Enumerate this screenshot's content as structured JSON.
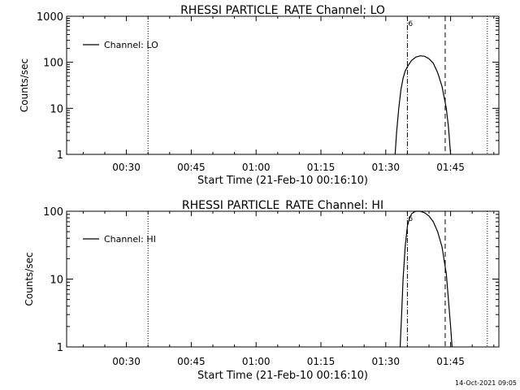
{
  "chart_data": [
    {
      "type": "line",
      "title": "RHESSI PARTICLE_RATE Channel: LO",
      "xlabel": "Start Time (21-Feb-10 00:16:10)",
      "ylabel": "Counts/sec",
      "y_scale": "log",
      "ylim": [
        1,
        1000
      ],
      "y_ticks": [
        "1",
        "10",
        "100",
        "1000"
      ],
      "x_ticks": [
        "00:30",
        "00:45",
        "01:00",
        "01:15",
        "01:30",
        "01:45"
      ],
      "xlim": [
        "00:16:10",
        "01:56:10"
      ],
      "legend": "Channel: LO",
      "legend_position": "top-left",
      "marker_label": "6",
      "vlines": [
        {
          "time": "00:35:00",
          "style": "dotted"
        },
        {
          "time": "01:35:00",
          "style": "dash-dot"
        },
        {
          "time": "01:43:45",
          "style": "dashed"
        },
        {
          "time": "01:53:30",
          "style": "dotted"
        }
      ],
      "series": [
        {
          "x": [
            "01:32:10",
            "01:32:30",
            "01:33:00",
            "01:33:30",
            "01:34:00",
            "01:34:30",
            "01:35:00",
            "01:35:30",
            "01:36:00",
            "01:37:00",
            "01:38:00",
            "01:39:00",
            "01:40:00",
            "01:41:00",
            "01:42:00",
            "01:43:00",
            "01:44:00",
            "01:44:30",
            "01:45:00"
          ],
          "y": [
            1,
            3,
            10,
            25,
            45,
            65,
            80,
            95,
            110,
            130,
            138,
            135,
            120,
            95,
            60,
            30,
            10,
            4,
            1
          ]
        }
      ]
    },
    {
      "type": "line",
      "title": "RHESSI PARTICLE_RATE Channel: HI",
      "xlabel": "Start Time (21-Feb-10 00:16:10)",
      "ylabel": "Counts/sec",
      "y_scale": "log",
      "ylim": [
        1,
        100
      ],
      "y_ticks": [
        "1",
        "10",
        "100"
      ],
      "x_ticks": [
        "00:30",
        "00:45",
        "01:00",
        "01:15",
        "01:30",
        "01:45"
      ],
      "xlim": [
        "00:16:10",
        "01:56:10"
      ],
      "legend": "Channel: HI",
      "legend_position": "top-left",
      "marker_label": "6",
      "vlines": [
        {
          "time": "00:35:00",
          "style": "dotted"
        },
        {
          "time": "01:35:00",
          "style": "dash-dot"
        },
        {
          "time": "01:43:45",
          "style": "dashed"
        },
        {
          "time": "01:53:30",
          "style": "dotted"
        }
      ],
      "series": [
        {
          "x": [
            "01:33:20",
            "01:33:40",
            "01:34:00",
            "01:34:30",
            "01:35:00",
            "01:35:30",
            "01:36:00",
            "01:36:30",
            "01:37:00",
            "01:38:00",
            "01:39:00",
            "01:40:00",
            "01:41:00",
            "01:42:00",
            "01:43:00",
            "01:44:00",
            "01:44:30",
            "01:45:00",
            "01:45:20"
          ],
          "y": [
            1,
            3,
            10,
            30,
            60,
            80,
            92,
            97,
            100,
            100,
            95,
            85,
            70,
            50,
            30,
            12,
            5,
            2,
            1
          ]
        }
      ]
    }
  ],
  "footer": {
    "timestamp": "14-Oct-2021 09:05"
  }
}
